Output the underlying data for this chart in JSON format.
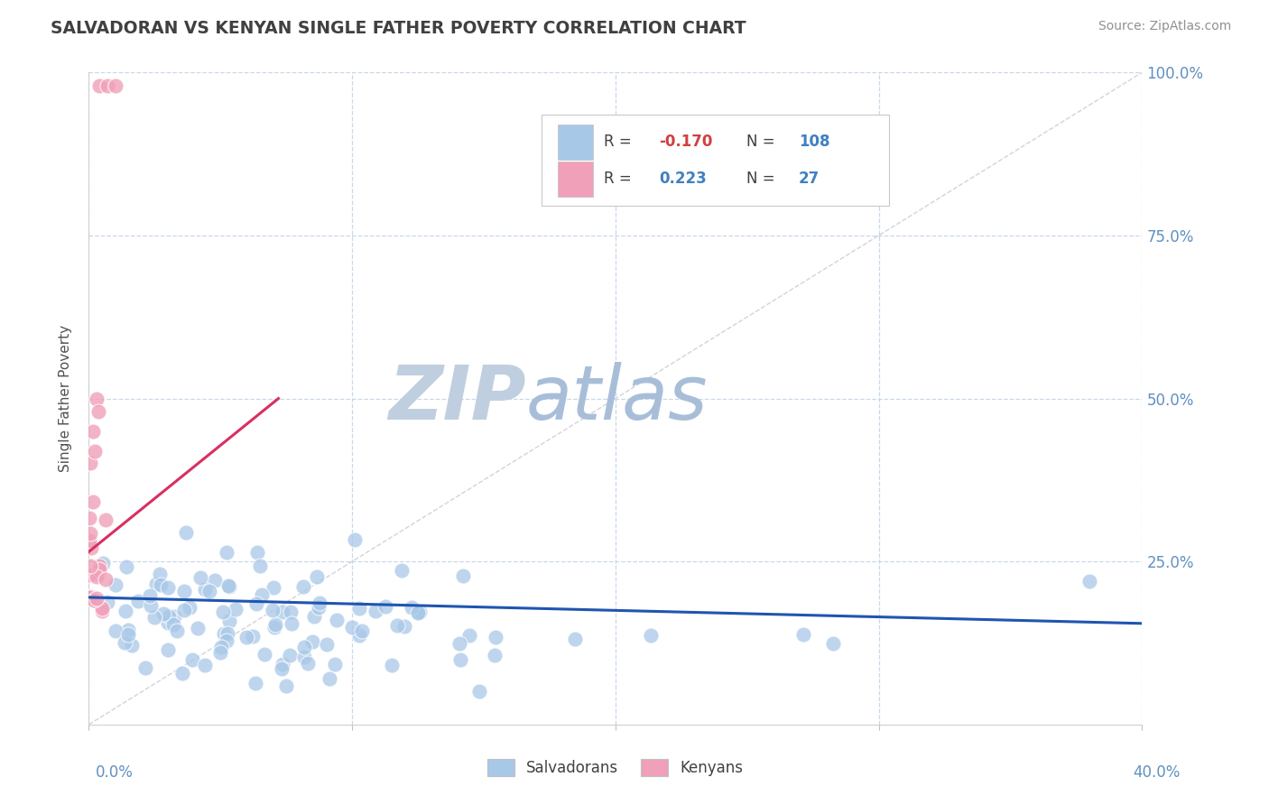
{
  "title": "SALVADORAN VS KENYAN SINGLE FATHER POVERTY CORRELATION CHART",
  "source": "Source: ZipAtlas.com",
  "ylabel": "Single Father Poverty",
  "ytick_vals": [
    0.25,
    0.5,
    0.75,
    1.0
  ],
  "ytick_labels": [
    "25.0%",
    "50.0%",
    "75.0%",
    "100.0%"
  ],
  "salvadoran_R": -0.17,
  "salvadoran_N": 108,
  "kenyan_R": 0.223,
  "kenyan_N": 27,
  "blue_dot_color": "#A8C8E8",
  "pink_dot_color": "#F0A0B8",
  "blue_line_color": "#2055B0",
  "pink_line_color": "#D83060",
  "blue_legend_color": "#A8C8E8",
  "pink_legend_color": "#F0A0B8",
  "title_color": "#404040",
  "source_color": "#909090",
  "axis_tick_color": "#6090C0",
  "ylabel_color": "#505050",
  "background_color": "#FFFFFF",
  "grid_color": "#C8D8E8",
  "watermark_zip_color": "#C0CFDF",
  "watermark_atlas_color": "#A8BED8",
  "xlim": [
    0.0,
    0.4
  ],
  "ylim": [
    0.0,
    1.0
  ]
}
